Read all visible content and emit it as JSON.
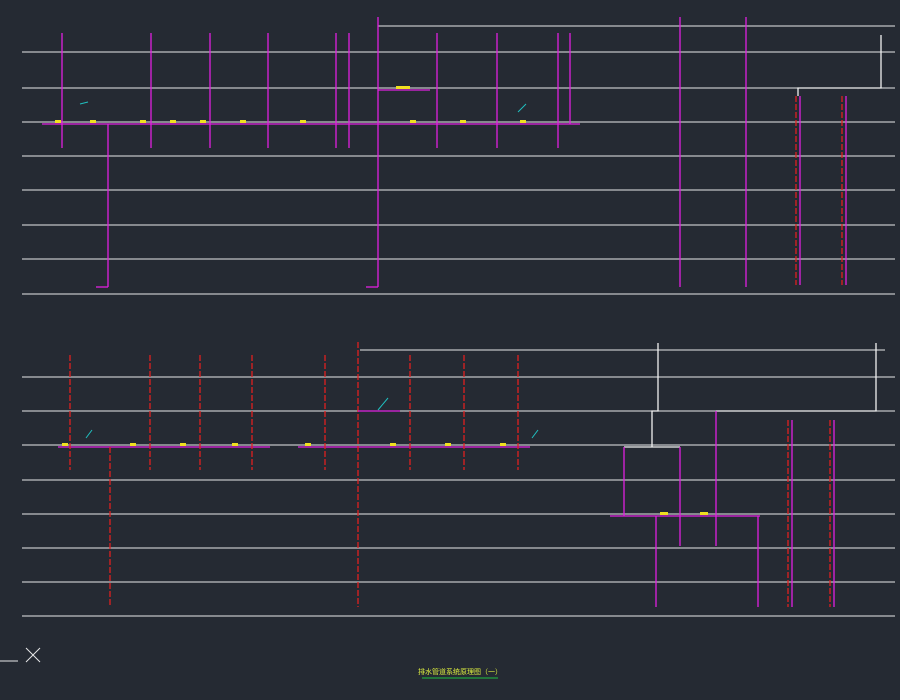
{
  "title": "排水管道系统原理图（一）"
}
